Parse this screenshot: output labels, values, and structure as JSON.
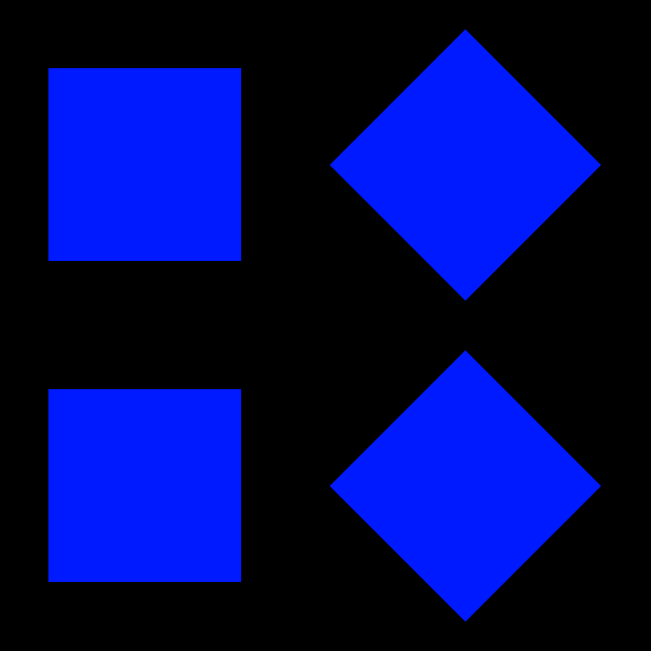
{
  "colors": {
    "background": "#000000",
    "shape_fill": "#001AFF"
  },
  "shapes": [
    {
      "kind": "square",
      "semantic": "top-left-square"
    },
    {
      "kind": "diamond",
      "semantic": "top-right-diamond"
    },
    {
      "kind": "square",
      "semantic": "bottom-left-square"
    },
    {
      "kind": "diamond",
      "semantic": "bottom-right-diamond"
    }
  ]
}
